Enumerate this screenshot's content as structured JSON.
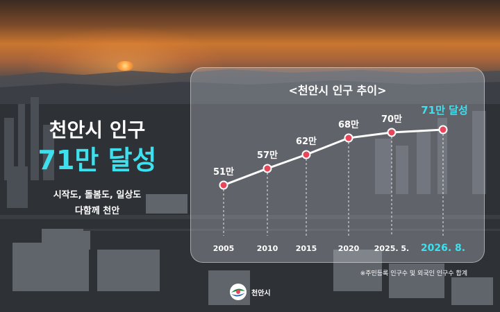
{
  "headline": {
    "line1": "천안시 인구",
    "line2": "71만 달성",
    "tagline1": "시작도, 돌봄도, 일상도",
    "tagline2": "다함께 천안"
  },
  "chart_data": {
    "type": "line",
    "title": "<천안시 인구 추이>",
    "x": [
      "2005",
      "2010",
      "2015",
      "2020",
      "2025. 5.",
      "2026. 8."
    ],
    "series": [
      {
        "values": [
          51,
          57,
          62,
          68,
          70,
          71
        ]
      }
    ],
    "data_labels": [
      "51만",
      "57만",
      "62만",
      "68만",
      "70만",
      "71만 달성"
    ],
    "unit": "만",
    "ylim": [
      45,
      75
    ],
    "grid": false,
    "legend": "none",
    "colors": {
      "line": "#ffffff",
      "marker": "#e8465a",
      "highlight": "#3fe0ee"
    }
  },
  "footnote": "※주민등록 인구수 및 외국인 인구수 합계",
  "logo": {
    "name": "천안시"
  }
}
